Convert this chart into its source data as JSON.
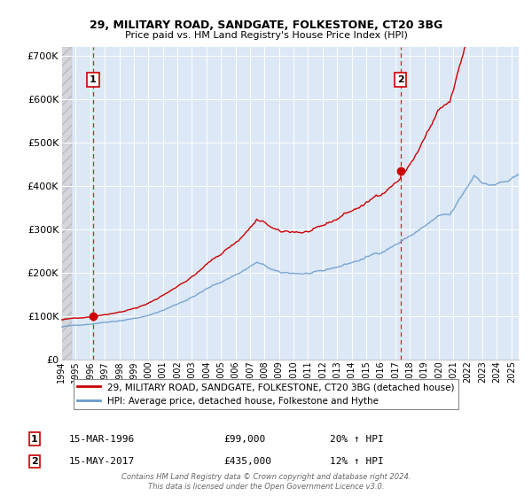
{
  "title1": "29, MILITARY ROAD, SANDGATE, FOLKESTONE, CT20 3BG",
  "title2": "Price paid vs. HM Land Registry's House Price Index (HPI)",
  "ylim": [
    0,
    720000
  ],
  "yticks": [
    0,
    100000,
    200000,
    300000,
    400000,
    500000,
    600000,
    700000
  ],
  "ytick_labels": [
    "£0",
    "£100K",
    "£200K",
    "£300K",
    "£400K",
    "£500K",
    "£600K",
    "£700K"
  ],
  "xlim_start": 1994.0,
  "xlim_end": 2025.5,
  "xtick_years": [
    1994,
    1995,
    1996,
    1997,
    1998,
    1999,
    2000,
    2001,
    2002,
    2003,
    2004,
    2005,
    2006,
    2007,
    2008,
    2009,
    2010,
    2011,
    2012,
    2013,
    2014,
    2015,
    2016,
    2017,
    2018,
    2019,
    2020,
    2021,
    2022,
    2023,
    2024,
    2025
  ],
  "sale1_x": 1996.2,
  "sale1_y": 99000,
  "sale2_x": 2017.37,
  "sale2_y": 435000,
  "legend_line1": "29, MILITARY ROAD, SANDGATE, FOLKESTONE, CT20 3BG (detached house)",
  "legend_line2": "HPI: Average price, detached house, Folkestone and Hythe",
  "annotation1_date": "15-MAR-1996",
  "annotation1_price": "£99,000",
  "annotation1_hpi": "20% ↑ HPI",
  "annotation2_date": "15-MAY-2017",
  "annotation2_price": "£435,000",
  "annotation2_hpi": "12% ↑ HPI",
  "footer": "Contains HM Land Registry data © Crown copyright and database right 2024.\nThis data is licensed under the Open Government Licence v3.0.",
  "color_red": "#cc0000",
  "color_blue": "#6699cc",
  "color_plot_bg": "#dce8f5",
  "hatch_color": "#c8c8c8"
}
